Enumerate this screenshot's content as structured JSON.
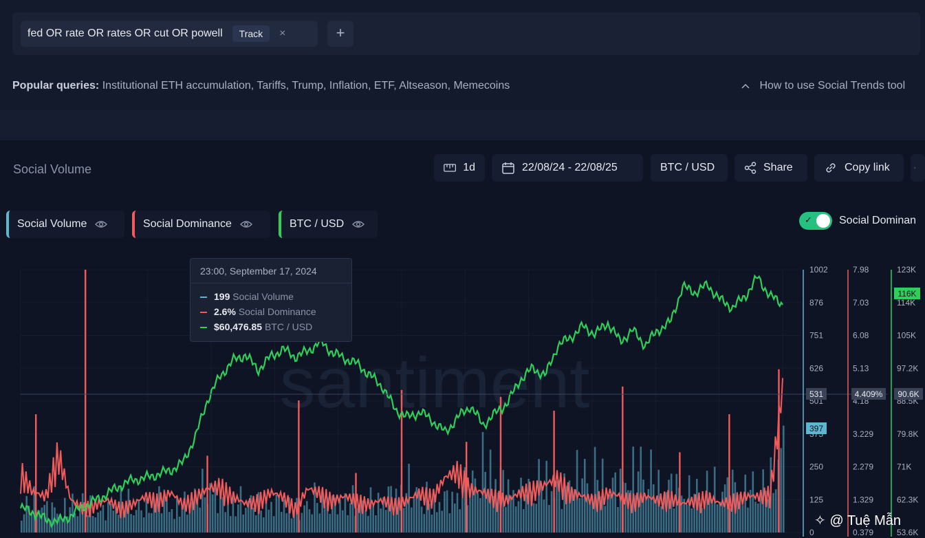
{
  "search": {
    "query": "fed OR rate OR rates OR cut OR powell",
    "track_label": "Track",
    "close_symbol": "×",
    "add_symbol": "+"
  },
  "popular": {
    "label": "Popular queries:",
    "items": "Institutional ETH accumulation, Tariffs, Trump, Inflation, ETF, Altseason, Memecoins",
    "howto": "How to use Social Trends tool"
  },
  "panel": {
    "title": "Social Volume",
    "interval": "1d",
    "date_range": "22/08/24 - 22/08/25",
    "pair": "BTC / USD",
    "share": "Share",
    "copy_link": "Copy link"
  },
  "legend": {
    "social_volume": "Social Volume",
    "social_dominance": "Social Dominance",
    "btc_usd": "BTC / USD",
    "toggle_label": "Social Dominan"
  },
  "colors": {
    "volume": "#5fb6d1",
    "dominance": "#f15b5b",
    "price": "#2fcf5a",
    "toggle": "#26c17e"
  },
  "tooltip": {
    "date": "23:00, September 17, 2024",
    "volume_value": "199",
    "volume_label": "Social Volume",
    "dominance_value": "2.6%",
    "dominance_label": "Social Dominance",
    "price_value": "$60,476.85",
    "price_label": "BTC / USD"
  },
  "axes": {
    "volume_ticks": [
      "1002",
      "876",
      "751",
      "626",
      "501",
      "375",
      "250",
      "125",
      "0"
    ],
    "dominance_ticks": [
      "7.98",
      "7.03",
      "6.08",
      "5.13",
      "4.18",
      "3.229",
      "2.279",
      "1.329",
      "0.379"
    ],
    "price_ticks": [
      "123K",
      "114K",
      "105K",
      "97.2K",
      "88.5K",
      "79.8K",
      "71K",
      "62.3K",
      "53.6K"
    ],
    "crosshair_volume": "531",
    "crosshair_dominance": "4.409%",
    "crosshair_price": "90.6K",
    "current_volume": "397",
    "current_price": "116K"
  },
  "watermark": {
    "brand": "santiment",
    "author": "@ Tuệ Mẫn"
  },
  "chart_data": {
    "type": "line",
    "x_range": [
      "22/08/24",
      "22/08/25"
    ],
    "series": [
      {
        "name": "BTC / USD",
        "values": [
          60000,
          59000,
          57000,
          56500,
          58000,
          60500,
          62000,
          64000,
          66000,
          67500,
          68000,
          69000,
          70000,
          72000,
          79000,
          89000,
          95000,
          99000,
          100500,
          96500,
          100000,
          102000,
          100000,
          101500,
          104000,
          101000,
          99500,
          98000,
          95000,
          92000,
          86000,
          84000,
          85500,
          83000,
          80000,
          84000,
          87000,
          82000,
          85000,
          88000,
          94000,
          97000,
          95000,
          103000,
          105000,
          108000,
          106000,
          109000,
          104000,
          107000,
          103000,
          107000,
          109000,
          118500,
          117000,
          119000,
          115000,
          113000,
          116000,
          121000,
          116000,
          114000
        ]
      },
      {
        "name": "Social Volume",
        "values": [
          100,
          140,
          110,
          95,
          120,
          130,
          90,
          105,
          150,
          120,
          100,
          170,
          110,
          120,
          160,
          210,
          130,
          120,
          150,
          115,
          120,
          140,
          100,
          125,
          165,
          120,
          145,
          130,
          130,
          150,
          170,
          200,
          160,
          130,
          145,
          160,
          220,
          300,
          250,
          190,
          160,
          210,
          230,
          180,
          240,
          250,
          260,
          200,
          220,
          260,
          300,
          190,
          210,
          180,
          170,
          200,
          190,
          210,
          180,
          200,
          220,
          397
        ]
      },
      {
        "name": "Social Dominance",
        "values": [
          2.0,
          1.4,
          1.3,
          2.5,
          1.2,
          1.0,
          1.1,
          1.2,
          1.0,
          1.1,
          1.3,
          1.2,
          1.4,
          1.1,
          1.3,
          1.5,
          1.6,
          1.3,
          1.1,
          1.2,
          1.4,
          1.3,
          1.0,
          1.5,
          1.4,
          1.2,
          1.3,
          1.2,
          1.1,
          1.2,
          1.1,
          1.2,
          1.4,
          1.3,
          1.8,
          2.0,
          1.5,
          1.4,
          1.3,
          1.2,
          1.4,
          1.5,
          1.6,
          1.8,
          1.4,
          1.3,
          1.2,
          1.4,
          1.3,
          1.2,
          1.3,
          1.2,
          1.3,
          1.1,
          1.2,
          1.3,
          1.1,
          1.2,
          1.3,
          1.3,
          1.4,
          4.2
        ]
      }
    ],
    "spikes": {
      "dominance_positions": [
        0.02,
        0.085,
        0.245,
        0.365,
        0.44,
        0.5,
        0.585,
        0.63,
        0.7,
        0.79,
        0.865,
        0.93,
        0.995
      ],
      "dominance_values": [
        3.8,
        7.98,
        2.6,
        4.2,
        2.1,
        4.5,
        3.0,
        4.3,
        3.9,
        4.6,
        2.7,
        3.8,
        5.1
      ]
    },
    "y_axes": {
      "volume": [
        0,
        1002
      ],
      "dominance": [
        0.379,
        7.98
      ],
      "price": [
        53600,
        123000
      ]
    },
    "grid": true,
    "crosshair": {
      "volume": 531,
      "dominance": 4.409,
      "price": 90600
    }
  }
}
